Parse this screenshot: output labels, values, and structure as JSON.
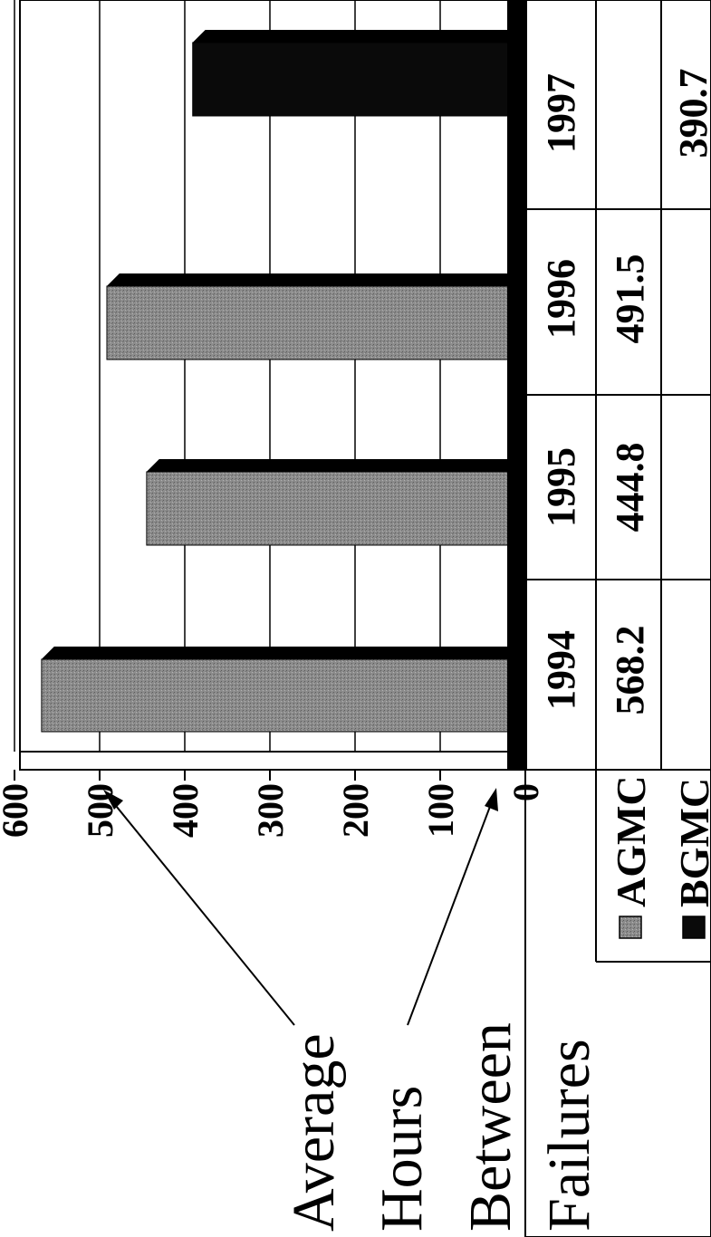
{
  "chart_data": {
    "type": "bar",
    "orientation": "rotated-90-clockwise",
    "categories": [
      "1994",
      "1995",
      "1996",
      "1997"
    ],
    "series": [
      {
        "name": "AGMC",
        "values": [
          568.2,
          444.8,
          491.5,
          null
        ],
        "color": "#8a8a8a"
      },
      {
        "name": "BGMC",
        "values": [
          null,
          null,
          null,
          390.7
        ],
        "color": "#0a0a0a"
      }
    ],
    "ylim": [
      0,
      600
    ],
    "yticks": [
      "0",
      "100",
      "200",
      "300",
      "400",
      "500",
      "600"
    ],
    "ylabel_lines": [
      "Average",
      "Hours",
      "Between",
      "Failures"
    ],
    "grid": true,
    "data_table": true,
    "legend": "data-table-left"
  }
}
